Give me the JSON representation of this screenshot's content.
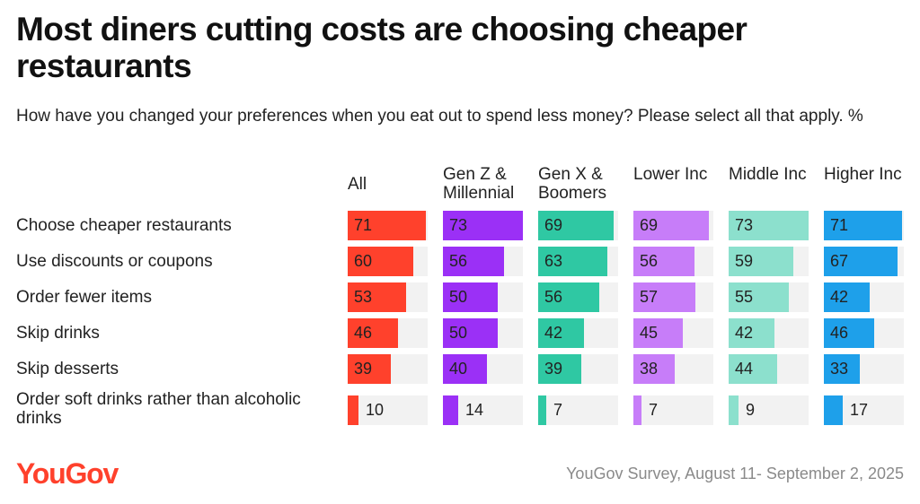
{
  "title": "Most diners cutting costs are choosing cheaper restaurants",
  "subtitle": "How have you changed your preferences when you eat out to spend less money? Please select all that apply. %",
  "chart_data": {
    "type": "bar",
    "orientation": "horizontal-small-multiples",
    "title": "Most diners cutting costs are choosing cheaper restaurants",
    "subtitle": "How have you changed your preferences when you eat out to spend less money? Please select all that apply. %",
    "categories": [
      "Choose cheaper restaurants",
      "Use discounts or coupons",
      "Order fewer items",
      "Skip drinks",
      "Skip desserts",
      "Order soft drinks rather than alcoholic drinks"
    ],
    "xlim": [
      0,
      73
    ],
    "series": [
      {
        "name": "All",
        "color": "#ff412c",
        "values": [
          71,
          60,
          53,
          46,
          39,
          10
        ]
      },
      {
        "name": "Gen Z & Millennial",
        "color": "#9b30f6",
        "values": [
          73,
          56,
          50,
          50,
          40,
          14
        ]
      },
      {
        "name": "Gen X & Boomers",
        "color": "#2fc8a3",
        "values": [
          69,
          63,
          56,
          42,
          39,
          7
        ]
      },
      {
        "name": "Lower Inc",
        "color": "#c77df9",
        "values": [
          69,
          56,
          57,
          45,
          38,
          7
        ]
      },
      {
        "name": "Middle Inc",
        "color": "#8ce0cd",
        "values": [
          73,
          59,
          55,
          42,
          44,
          9
        ]
      },
      {
        "name": "Higher Inc",
        "color": "#1ea0ea",
        "values": [
          71,
          67,
          42,
          46,
          33,
          17
        ]
      }
    ]
  },
  "brand": "YouGov",
  "source": "YouGov Survey, August 11- September 2, 2025"
}
